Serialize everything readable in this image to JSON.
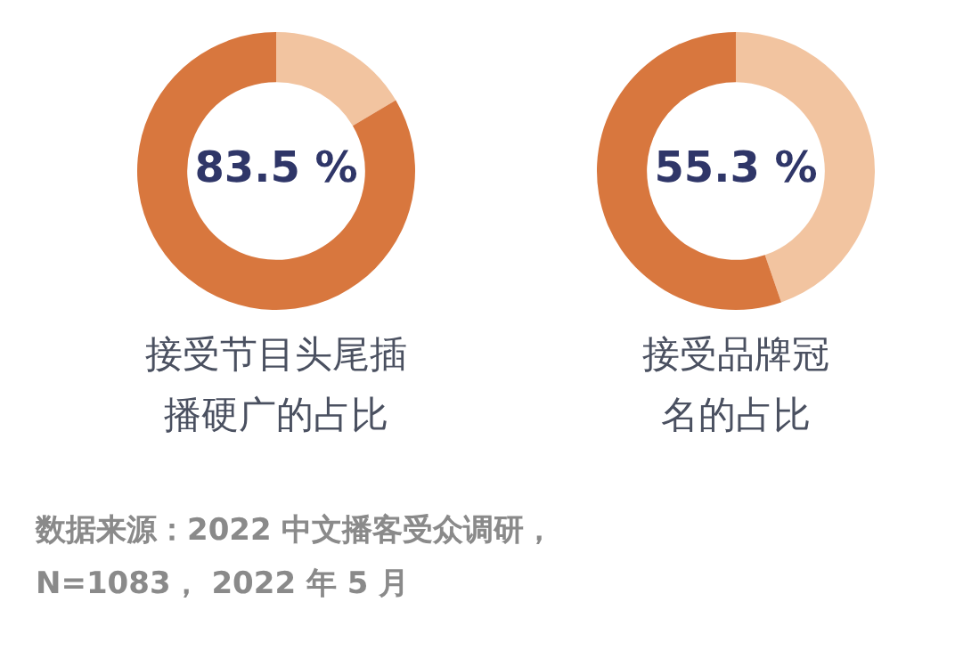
{
  "chart_data": [
    {
      "type": "donut",
      "title": "接受节目头尾插播硬广的占比",
      "categories": [
        null,
        null
      ],
      "values": [
        16.5,
        83.5
      ],
      "colors": [
        "#f2c4a0",
        "#d8773e"
      ],
      "value_labels": [
        null,
        "83.5 %"
      ]
    },
    {
      "type": "donut",
      "title": "接受品牌冠名的占比",
      "categories": [
        null,
        null
      ],
      "values": [
        44.7,
        55.3
      ],
      "colors": [
        "#f2c4a0",
        "#d8773e"
      ],
      "value_labels": [
        null,
        "55.3 %"
      ],
      "annotations": [
        "数据来源：2022 中文播客受众调研，\nN=1083， 2022 年 5 月"
      ]
    }
  ]
}
